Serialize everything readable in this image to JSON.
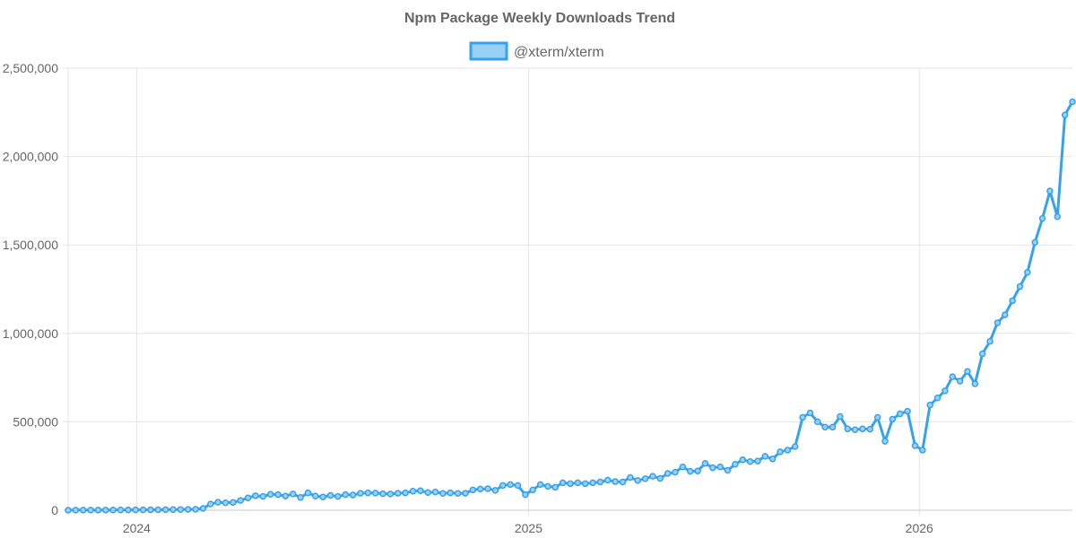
{
  "chart_data": {
    "type": "line",
    "title": "Npm Package Weekly Downloads Trend",
    "xlabel": "",
    "ylabel": "",
    "ylim": [
      0,
      2500000
    ],
    "y_ticks": [
      0,
      500000,
      1000000,
      1500000,
      2000000,
      2500000
    ],
    "y_tick_labels": [
      "0",
      "500,000",
      "1,000,000",
      "1,500,000",
      "2,000,000",
      "2,500,000"
    ],
    "x_ticks": [
      "2024-01-01",
      "2025-01-01",
      "2026-01-01"
    ],
    "x_tick_labels": [
      "2024",
      "2025",
      "2026"
    ],
    "grid": true,
    "legend_position": "top-center",
    "colors": {
      "line": "#36a2eb",
      "fill": "#9ad0f5"
    },
    "series": [
      {
        "name": "@xterm/xterm",
        "points": [
          [
            "2023-10-29",
            0
          ],
          [
            "2023-11-05",
            500
          ],
          [
            "2023-11-12",
            600
          ],
          [
            "2023-11-19",
            700
          ],
          [
            "2023-11-26",
            800
          ],
          [
            "2023-12-03",
            900
          ],
          [
            "2023-12-10",
            1100
          ],
          [
            "2023-12-17",
            1300
          ],
          [
            "2023-12-24",
            1500
          ],
          [
            "2023-12-31",
            1700
          ],
          [
            "2024-01-07",
            2000
          ],
          [
            "2024-01-14",
            2300
          ],
          [
            "2024-01-21",
            2600
          ],
          [
            "2024-01-28",
            3000
          ],
          [
            "2024-02-04",
            3500
          ],
          [
            "2024-02-11",
            4000
          ],
          [
            "2024-02-18",
            4500
          ],
          [
            "2024-02-25",
            5000
          ],
          [
            "2024-03-03",
            10000
          ],
          [
            "2024-03-10",
            35000
          ],
          [
            "2024-03-17",
            45000
          ],
          [
            "2024-03-24",
            42000
          ],
          [
            "2024-03-31",
            44000
          ],
          [
            "2024-04-07",
            55000
          ],
          [
            "2024-04-14",
            70000
          ],
          [
            "2024-04-21",
            82000
          ],
          [
            "2024-04-28",
            78000
          ],
          [
            "2024-05-05",
            90000
          ],
          [
            "2024-05-12",
            88000
          ],
          [
            "2024-05-19",
            80000
          ],
          [
            "2024-05-26",
            92000
          ],
          [
            "2024-06-02",
            72000
          ],
          [
            "2024-06-09",
            98000
          ],
          [
            "2024-06-16",
            80000
          ],
          [
            "2024-06-23",
            75000
          ],
          [
            "2024-06-30",
            84000
          ],
          [
            "2024-07-07",
            78000
          ],
          [
            "2024-07-14",
            88000
          ],
          [
            "2024-07-21",
            86000
          ],
          [
            "2024-07-28",
            96000
          ],
          [
            "2024-08-04",
            98000
          ],
          [
            "2024-08-11",
            97000
          ],
          [
            "2024-08-18",
            93000
          ],
          [
            "2024-08-25",
            92000
          ],
          [
            "2024-09-01",
            96000
          ],
          [
            "2024-09-08",
            98000
          ],
          [
            "2024-09-15",
            108000
          ],
          [
            "2024-09-22",
            110000
          ],
          [
            "2024-09-29",
            100000
          ],
          [
            "2024-10-06",
            103000
          ],
          [
            "2024-10-13",
            95000
          ],
          [
            "2024-10-20",
            98000
          ],
          [
            "2024-10-27",
            95000
          ],
          [
            "2024-11-03",
            96000
          ],
          [
            "2024-11-10",
            115000
          ],
          [
            "2024-11-17",
            120000
          ],
          [
            "2024-11-24",
            122000
          ],
          [
            "2024-12-01",
            112000
          ],
          [
            "2024-12-08",
            140000
          ],
          [
            "2024-12-15",
            145000
          ],
          [
            "2024-12-22",
            140000
          ],
          [
            "2024-12-29",
            88000
          ],
          [
            "2025-01-05",
            115000
          ],
          [
            "2025-01-12",
            145000
          ],
          [
            "2025-01-19",
            135000
          ],
          [
            "2025-01-26",
            130000
          ],
          [
            "2025-02-02",
            155000
          ],
          [
            "2025-02-09",
            150000
          ],
          [
            "2025-02-16",
            155000
          ],
          [
            "2025-02-23",
            150000
          ],
          [
            "2025-03-02",
            155000
          ],
          [
            "2025-03-09",
            160000
          ],
          [
            "2025-03-16",
            170000
          ],
          [
            "2025-03-23",
            162000
          ],
          [
            "2025-03-30",
            160000
          ],
          [
            "2025-04-06",
            185000
          ],
          [
            "2025-04-13",
            168000
          ],
          [
            "2025-04-20",
            178000
          ],
          [
            "2025-04-27",
            192000
          ],
          [
            "2025-05-04",
            180000
          ],
          [
            "2025-05-11",
            208000
          ],
          [
            "2025-05-18",
            215000
          ],
          [
            "2025-05-25",
            245000
          ],
          [
            "2025-06-01",
            220000
          ],
          [
            "2025-06-08",
            222000
          ],
          [
            "2025-06-15",
            265000
          ],
          [
            "2025-06-22",
            240000
          ],
          [
            "2025-06-29",
            245000
          ],
          [
            "2025-07-06",
            225000
          ],
          [
            "2025-07-13",
            260000
          ],
          [
            "2025-07-20",
            285000
          ],
          [
            "2025-07-27",
            275000
          ],
          [
            "2025-08-03",
            278000
          ],
          [
            "2025-08-10",
            305000
          ],
          [
            "2025-08-17",
            290000
          ],
          [
            "2025-08-24",
            330000
          ],
          [
            "2025-08-31",
            340000
          ],
          [
            "2025-09-07",
            360000
          ],
          [
            "2025-09-14",
            525000
          ],
          [
            "2025-09-21",
            550000
          ],
          [
            "2025-09-28",
            500000
          ],
          [
            "2025-10-05",
            470000
          ],
          [
            "2025-10-12",
            470000
          ],
          [
            "2025-10-19",
            530000
          ],
          [
            "2025-10-26",
            460000
          ],
          [
            "2025-11-02",
            455000
          ],
          [
            "2025-11-09",
            460000
          ],
          [
            "2025-11-16",
            458000
          ],
          [
            "2025-11-23",
            525000
          ],
          [
            "2025-11-30",
            390000
          ],
          [
            "2025-12-07",
            515000
          ],
          [
            "2025-12-14",
            545000
          ],
          [
            "2025-12-21",
            560000
          ],
          [
            "2025-12-28",
            365000
          ],
          [
            "2026-01-04",
            340000
          ],
          [
            "2026-01-11",
            595000
          ],
          [
            "2026-01-18",
            635000
          ],
          [
            "2026-01-25",
            675000
          ],
          [
            "2026-02-01",
            755000
          ],
          [
            "2026-02-08",
            730000
          ],
          [
            "2026-02-15",
            785000
          ],
          [
            "2026-02-22",
            715000
          ],
          [
            "2026-03-01",
            885000
          ],
          [
            "2026-03-08",
            955000
          ],
          [
            "2026-03-15",
            1060000
          ],
          [
            "2026-03-22",
            1105000
          ],
          [
            "2026-03-29",
            1185000
          ],
          [
            "2026-04-05",
            1265000
          ],
          [
            "2026-04-12",
            1345000
          ],
          [
            "2026-04-19",
            1515000
          ],
          [
            "2026-04-26",
            1650000
          ],
          [
            "2026-05-03",
            1805000
          ],
          [
            "2026-05-10",
            1660000
          ],
          [
            "2026-05-17",
            2235000
          ],
          [
            "2026-05-24",
            2310000
          ]
        ]
      }
    ]
  }
}
